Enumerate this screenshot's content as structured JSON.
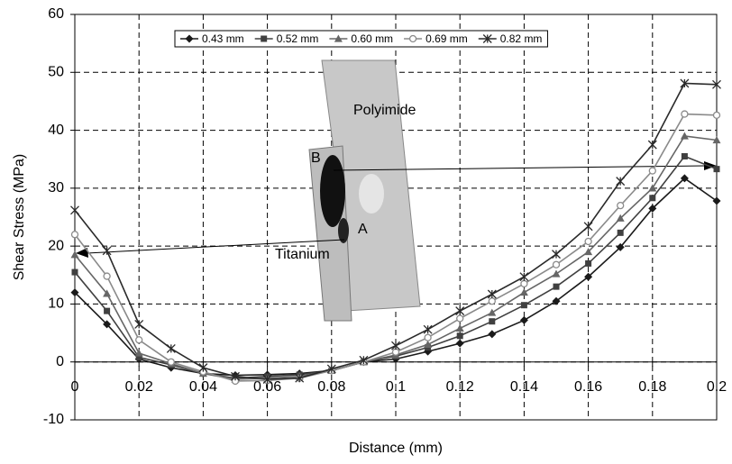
{
  "chart_data": {
    "type": "line",
    "xlabel": "Distance (mm)",
    "ylabel": "Shear Stress (MPa)",
    "x": [
      0,
      0.01,
      0.02,
      0.03,
      0.04,
      0.05,
      0.06,
      0.07,
      0.08,
      0.09,
      0.1,
      0.11,
      0.12,
      0.13,
      0.14,
      0.15,
      0.16,
      0.17,
      0.18,
      0.19,
      0.2
    ],
    "series": [
      {
        "name": "0.43 mm",
        "color": "#1a1a1a",
        "marker": "diamond",
        "values": [
          12,
          6.5,
          0.5,
          -1,
          -2,
          -2.3,
          -2.2,
          -2,
          -1.5,
          0,
          0.5,
          1.8,
          3.2,
          4.8,
          7.2,
          10.5,
          14.7,
          19.8,
          26.5,
          31.7,
          27.8
        ]
      },
      {
        "name": "0.52 mm",
        "color": "#404040",
        "marker": "square",
        "values": [
          15.5,
          8.8,
          0.8,
          -0.5,
          -2,
          -2.8,
          -2.5,
          -2.2,
          -1.5,
          0,
          1,
          2.5,
          4.5,
          7,
          9.8,
          13,
          17,
          22.3,
          28.3,
          35.5,
          33.3
        ]
      },
      {
        "name": "0.60 mm",
        "color": "#666666",
        "marker": "triangle",
        "values": [
          18.5,
          11.8,
          1.5,
          -0.3,
          -2,
          -3,
          -2.8,
          -2.5,
          -1.5,
          0,
          1.2,
          3,
          5.8,
          8.5,
          12,
          15.2,
          19,
          24.8,
          30,
          39,
          38.3
        ]
      },
      {
        "name": "0.69 mm",
        "color": "#8a8a8a",
        "marker": "circle",
        "values": [
          22,
          14.8,
          3.8,
          0,
          -1.7,
          -3.3,
          -3.2,
          -2.8,
          -1.5,
          0,
          1.7,
          4.2,
          7.5,
          10.5,
          13.5,
          16.8,
          20.8,
          27,
          33,
          42.8,
          42.6
        ]
      },
      {
        "name": "0.82 mm",
        "color": "#2a2a2a",
        "marker": "star",
        "values": [
          26.2,
          19.2,
          6.5,
          2.3,
          -1,
          -2.5,
          -3,
          -2.8,
          -1.2,
          0.3,
          2.8,
          5.6,
          8.8,
          11.7,
          14.7,
          18.6,
          23.4,
          31.2,
          37.5,
          48.1,
          47.9
        ]
      }
    ],
    "xlim": [
      0,
      0.2
    ],
    "xticks": [
      0,
      0.02,
      0.04,
      0.06,
      0.08,
      0.1,
      0.12,
      0.14,
      0.16,
      0.18,
      0.2
    ],
    "ylim": [
      -10,
      60
    ],
    "yticks": [
      -10,
      0,
      10,
      20,
      30,
      40,
      50,
      60
    ],
    "grid": true,
    "legend": "top",
    "annotations": [
      "Polyimide",
      "Titanium",
      "A",
      "B"
    ]
  }
}
